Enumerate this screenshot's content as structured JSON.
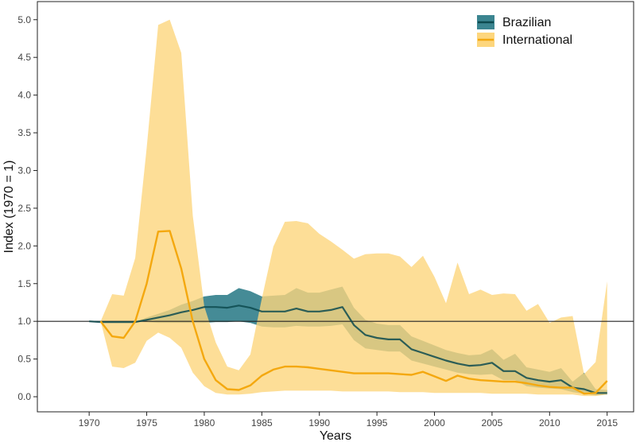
{
  "chart_data": {
    "type": "line",
    "title": "",
    "xlabel": "Years",
    "ylabel": "Index (1970 = 1)",
    "xlim": [
      1965.5,
      2017.3
    ],
    "ylim": [
      -0.2,
      5.24
    ],
    "x_ticks": [
      1970,
      1975,
      1980,
      1985,
      1990,
      1995,
      2000,
      2005,
      2010,
      2015
    ],
    "y_ticks": [
      0.0,
      0.5,
      1.0,
      1.5,
      2.0,
      2.5,
      3.0,
      3.5,
      4.0,
      4.5,
      5.0
    ],
    "y_tick_labels": [
      "0.0",
      "0.5",
      "1.0",
      "1.5",
      "2.0",
      "2.5",
      "3.0",
      "3.5",
      "4.0",
      "4.5",
      "5.0"
    ],
    "reference_line": {
      "y": 1.0,
      "color": "#222222"
    },
    "legend": {
      "position": "top-right",
      "entries": [
        "Brazilian",
        "International"
      ]
    },
    "series": [
      {
        "name": "Brazilian",
        "line_color": "#0d4a4f",
        "band_color": "#3b8590",
        "x": [
          1970,
          1971,
          1972,
          1973,
          1974,
          1975,
          1976,
          1977,
          1978,
          1979,
          1980,
          1981,
          1982,
          1983,
          1984,
          1985,
          1986,
          1987,
          1988,
          1989,
          1990,
          1991,
          1992,
          1993,
          1994,
          1995,
          1996,
          1997,
          1998,
          1999,
          2000,
          2001,
          2002,
          2003,
          2004,
          2005,
          2006,
          2007,
          2008,
          2009,
          2010,
          2011,
          2012,
          2013,
          2014,
          2015
        ],
        "values": [
          1.0,
          0.99,
          0.99,
          0.99,
          0.99,
          1.02,
          1.05,
          1.08,
          1.12,
          1.15,
          1.19,
          1.19,
          1.18,
          1.21,
          1.18,
          1.13,
          1.13,
          1.13,
          1.17,
          1.13,
          1.13,
          1.15,
          1.19,
          0.95,
          0.82,
          0.78,
          0.76,
          0.76,
          0.63,
          0.58,
          0.53,
          0.48,
          0.44,
          0.41,
          0.42,
          0.45,
          0.34,
          0.34,
          0.25,
          0.22,
          0.2,
          0.22,
          0.12,
          0.1,
          0.05,
          0.05
        ],
        "lower": [
          1.0,
          0.99,
          0.99,
          0.99,
          0.99,
          0.99,
          0.98,
          0.98,
          0.98,
          0.98,
          0.98,
          0.99,
          0.99,
          1.0,
          0.98,
          0.93,
          0.92,
          0.92,
          0.94,
          0.93,
          0.93,
          0.94,
          0.96,
          0.75,
          0.64,
          0.62,
          0.6,
          0.6,
          0.48,
          0.44,
          0.4,
          0.36,
          0.32,
          0.3,
          0.29,
          0.3,
          0.22,
          0.22,
          0.14,
          0.12,
          0.11,
          0.1,
          0.06,
          0.04,
          0.02,
          0.03
        ],
        "upper": [
          1.0,
          0.99,
          0.99,
          0.99,
          0.99,
          1.05,
          1.1,
          1.15,
          1.22,
          1.27,
          1.33,
          1.35,
          1.35,
          1.44,
          1.4,
          1.33,
          1.34,
          1.35,
          1.44,
          1.38,
          1.38,
          1.42,
          1.46,
          1.18,
          1.02,
          0.97,
          0.95,
          0.95,
          0.8,
          0.74,
          0.68,
          0.62,
          0.58,
          0.55,
          0.56,
          0.63,
          0.49,
          0.57,
          0.39,
          0.36,
          0.33,
          0.38,
          0.2,
          0.32,
          0.1,
          0.09
        ]
      },
      {
        "name": "International",
        "line_color": "#f4a80f",
        "band_color": "#fdd67d",
        "x": [
          1971,
          1972,
          1973,
          1974,
          1975,
          1976,
          1977,
          1978,
          1979,
          1980,
          1981,
          1982,
          1983,
          1984,
          1985,
          1986,
          1987,
          1988,
          1989,
          1990,
          1991,
          1992,
          1993,
          1994,
          1995,
          1996,
          1997,
          1998,
          1999,
          2000,
          2001,
          2002,
          2003,
          2004,
          2005,
          2006,
          2007,
          2008,
          2009,
          2010,
          2011,
          2012,
          2013,
          2014,
          2015
        ],
        "values": [
          1.0,
          0.8,
          0.78,
          1.0,
          1.5,
          2.19,
          2.2,
          1.7,
          1.0,
          0.5,
          0.22,
          0.1,
          0.09,
          0.15,
          0.28,
          0.36,
          0.4,
          0.4,
          0.39,
          0.37,
          0.35,
          0.33,
          0.31,
          0.31,
          0.31,
          0.31,
          0.3,
          0.29,
          0.33,
          0.27,
          0.21,
          0.28,
          0.24,
          0.22,
          0.21,
          0.2,
          0.2,
          0.18,
          0.15,
          0.13,
          0.12,
          0.12,
          0.04,
          0.05,
          0.21
        ],
        "lower": [
          1.0,
          0.4,
          0.38,
          0.45,
          0.74,
          0.85,
          0.78,
          0.65,
          0.32,
          0.14,
          0.05,
          0.03,
          0.03,
          0.04,
          0.06,
          0.07,
          0.08,
          0.08,
          0.08,
          0.08,
          0.08,
          0.07,
          0.07,
          0.07,
          0.07,
          0.07,
          0.06,
          0.06,
          0.06,
          0.05,
          0.05,
          0.05,
          0.05,
          0.05,
          0.04,
          0.04,
          0.04,
          0.04,
          0.03,
          0.03,
          0.03,
          0.03,
          0.01,
          0.01,
          0.03
        ],
        "upper": [
          1.0,
          1.36,
          1.34,
          1.84,
          3.3,
          4.93,
          5.0,
          4.56,
          2.4,
          1.2,
          0.72,
          0.4,
          0.35,
          0.56,
          1.3,
          1.99,
          2.32,
          2.33,
          2.3,
          2.16,
          2.06,
          1.95,
          1.83,
          1.89,
          1.9,
          1.9,
          1.86,
          1.72,
          1.87,
          1.59,
          1.24,
          1.78,
          1.36,
          1.42,
          1.35,
          1.37,
          1.36,
          1.14,
          1.23,
          0.98,
          1.05,
          1.07,
          0.3,
          0.46,
          1.53
        ]
      }
    ]
  }
}
